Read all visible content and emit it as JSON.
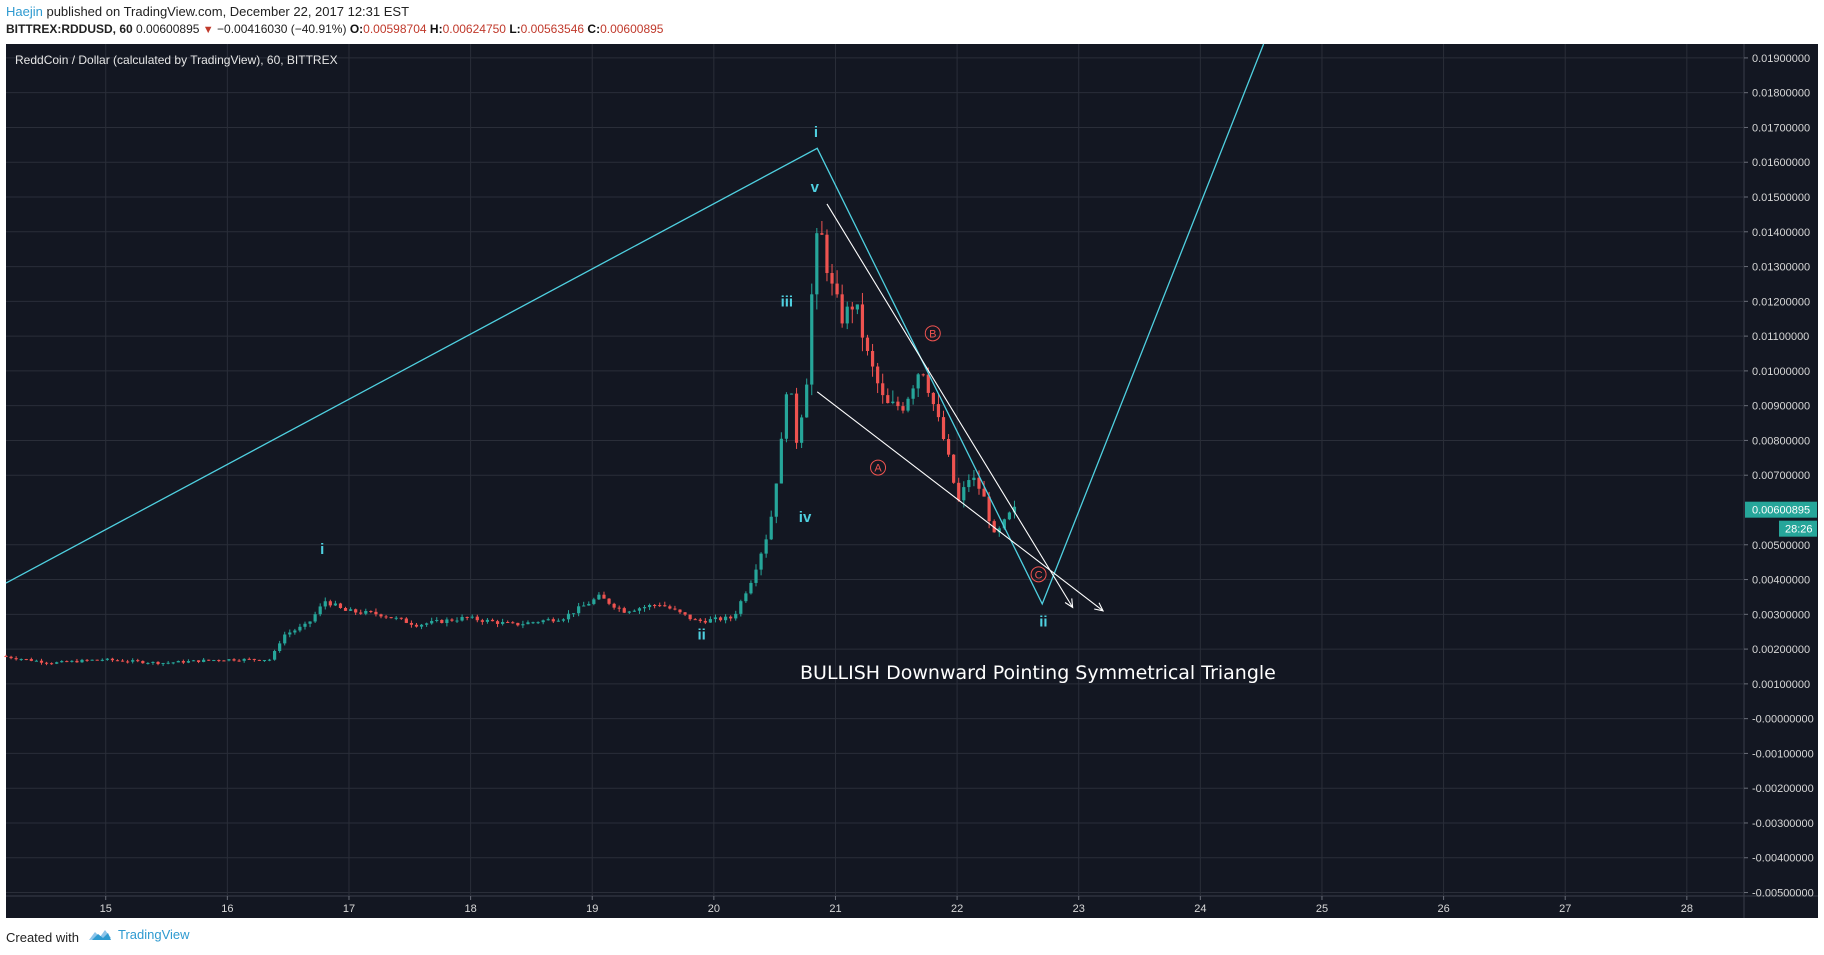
{
  "header": {
    "author": "Haejin",
    "published": " published on TradingView.com, December 22, 2017 12:31 EST",
    "symbol": "BITTREX:RDDUSD, 60",
    "last": "0.00600895",
    "change_arrow": "▼",
    "change": "−0.00416030 (−40.91%)",
    "o_label": "O:",
    "o_value": "0.00598704",
    "h_label": "H:",
    "h_value": "0.00624750",
    "l_label": "L:",
    "l_value": "0.00563546",
    "c_label": "C:",
    "c_value": "0.00600895"
  },
  "footer": {
    "created_with": "Created with",
    "brand": "TradingView"
  },
  "colors": {
    "background": "#131722",
    "grid": "#2a2e39",
    "up": "#26a69a",
    "down": "#ef5350",
    "wave_line": "#4fd0e0",
    "triangle": "#ffffff"
  },
  "chart_data": {
    "type": "candlestick",
    "title": "ReddCoin / Dollar (calculated by TradingView), 60, BITTREX",
    "annotation": "BULLISH Downward Pointing Symmetrical Triangle",
    "x_ticks": [
      "15",
      "16",
      "17",
      "18",
      "19",
      "20",
      "21",
      "22",
      "23",
      "24",
      "25",
      "26",
      "27",
      "28"
    ],
    "x_tick_values": [
      15,
      16,
      17,
      18,
      19,
      20,
      21,
      22,
      23,
      24,
      25,
      26,
      27,
      28
    ],
    "xlim": [
      14.18,
      28.47
    ],
    "ylim": [
      -0.0051,
      0.0194
    ],
    "y_ticks": [
      "0.01900000",
      "0.01800000",
      "0.01700000",
      "0.01600000",
      "0.01500000",
      "0.01400000",
      "0.01300000",
      "0.01200000",
      "0.01100000",
      "0.01000000",
      "0.00900000",
      "0.00800000",
      "0.00700000",
      "0.00500000",
      "0.00400000",
      "0.00300000",
      "0.00200000",
      "0.00100000",
      "-0.00000000",
      "-0.00100000",
      "-0.00200000",
      "-0.00300000",
      "-0.00400000",
      "-0.00500000"
    ],
    "y_tick_values": [
      0.019,
      0.018,
      0.017,
      0.016,
      0.015,
      0.014,
      0.013,
      0.012,
      0.011,
      0.01,
      0.009,
      0.008,
      0.007,
      0.005,
      0.004,
      0.003,
      0.002,
      0.001,
      0,
      -0.001,
      -0.002,
      -0.003,
      -0.004,
      -0.005
    ],
    "last_price_label": "0.00600895",
    "last_price": 0.00600895,
    "countdown_label": "28:26",
    "price_path": [
      [
        14.18,
        0.0018
      ],
      [
        14.6,
        0.0016
      ],
      [
        15.0,
        0.0017
      ],
      [
        15.5,
        0.0016
      ],
      [
        16.0,
        0.0017
      ],
      [
        16.4,
        0.0017
      ],
      [
        16.5,
        0.0024
      ],
      [
        16.7,
        0.0027
      ],
      [
        16.85,
        0.0034
      ],
      [
        17.0,
        0.0031
      ],
      [
        17.3,
        0.003
      ],
      [
        17.6,
        0.0027
      ],
      [
        18.0,
        0.0029
      ],
      [
        18.4,
        0.0027
      ],
      [
        18.8,
        0.0029
      ],
      [
        19.1,
        0.0035
      ],
      [
        19.3,
        0.0031
      ],
      [
        19.6,
        0.0033
      ],
      [
        19.9,
        0.0028
      ],
      [
        20.2,
        0.0029
      ],
      [
        20.35,
        0.004
      ],
      [
        20.5,
        0.0055
      ],
      [
        20.6,
        0.008
      ],
      [
        20.65,
        0.01
      ],
      [
        20.72,
        0.008
      ],
      [
        20.8,
        0.0095
      ],
      [
        20.87,
        0.0135
      ],
      [
        20.92,
        0.014
      ],
      [
        21.0,
        0.0125
      ],
      [
        21.1,
        0.0115
      ],
      [
        21.2,
        0.012
      ],
      [
        21.3,
        0.0105
      ],
      [
        21.45,
        0.009
      ],
      [
        21.6,
        0.009
      ],
      [
        21.75,
        0.0102
      ],
      [
        21.85,
        0.009
      ],
      [
        21.95,
        0.0078
      ],
      [
        22.05,
        0.0062
      ],
      [
        22.15,
        0.007
      ],
      [
        22.25,
        0.0065
      ],
      [
        22.35,
        0.0052
      ],
      [
        22.5,
        0.006
      ]
    ],
    "wave_path": [
      [
        14.18,
        0.0039
      ],
      [
        20.85,
        0.0164
      ],
      [
        22.7,
        0.0033
      ],
      [
        24.52,
        0.0194
      ]
    ],
    "triangle_lines": [
      [
        [
          20.93,
          0.0148
        ],
        [
          22.95,
          0.0032
        ]
      ],
      [
        [
          20.85,
          0.0094
        ],
        [
          23.2,
          0.0031
        ]
      ]
    ],
    "wave_labels": [
      {
        "text": "i",
        "x": 16.78,
        "y": 0.00473
      },
      {
        "text": "ii",
        "x": 19.9,
        "y": 0.00228
      },
      {
        "text": "iii",
        "x": 20.6,
        "y": 0.01185
      },
      {
        "text": "iv",
        "x": 20.75,
        "y": 0.00565
      },
      {
        "text": "v",
        "x": 20.83,
        "y": 0.01515
      },
      {
        "text": "i",
        "x": 20.84,
        "y": 0.01672
      },
      {
        "text": "ii",
        "x": 22.71,
        "y": 0.00265
      }
    ],
    "circle_labels": [
      {
        "text": "A",
        "x": 21.35,
        "y": 0.00722
      },
      {
        "text": "B",
        "x": 21.8,
        "y": 0.01108
      },
      {
        "text": "C",
        "x": 22.67,
        "y": 0.00415
      }
    ]
  }
}
